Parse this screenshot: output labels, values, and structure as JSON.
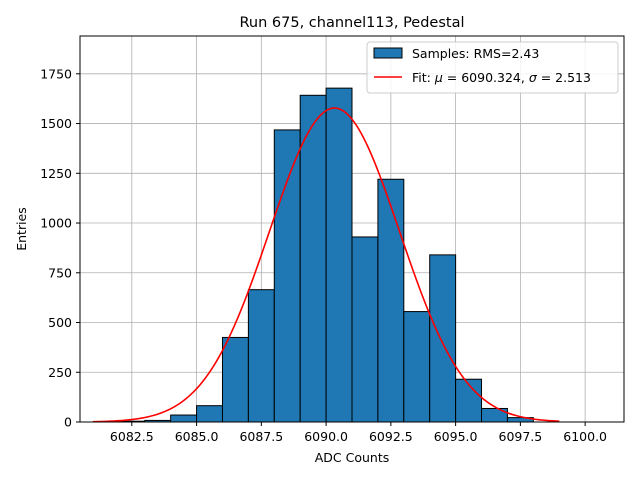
{
  "chart_data": {
    "type": "bar",
    "title": "Run 675, channel113, Pedestal",
    "xlabel": "ADC Counts",
    "ylabel": "Entries",
    "xlim": [
      6080.5,
      6101.5
    ],
    "ylim": [
      0,
      1940
    ],
    "grid": true,
    "legend_position": "top-right",
    "x_ticks": [
      6082.5,
      6085.0,
      6087.5,
      6090.0,
      6092.5,
      6095.0,
      6097.5,
      6100.0
    ],
    "x_tick_labels": [
      "6082.5",
      "6085.0",
      "6087.5",
      "6090.0",
      "6092.5",
      "6095.0",
      "6097.5",
      "6100.0"
    ],
    "y_ticks": [
      0,
      250,
      500,
      750,
      1000,
      1250,
      1500,
      1750
    ],
    "y_tick_labels": [
      "0",
      "250",
      "500",
      "750",
      "1000",
      "1250",
      "1500",
      "1750"
    ],
    "histogram": {
      "name": "Samples: RMS=2.43",
      "color": "#1f77b4",
      "edge_color": "#000000",
      "bin_edges": [
        6082,
        6083,
        6084,
        6085,
        6086,
        6087,
        6088,
        6089,
        6090,
        6091,
        6092,
        6093,
        6094,
        6095,
        6096,
        6097,
        6098
      ],
      "counts": [
        4,
        8,
        35,
        82,
        425,
        665,
        1468,
        1642,
        1678,
        930,
        1220,
        555,
        840,
        215,
        68,
        22
      ]
    },
    "fit": {
      "name": "Fit: μ = 6090.324, σ = 2.513",
      "name_parts": {
        "prefix": "Fit: ",
        "mu_symbol": "μ",
        "mu_eq": " = 6090.324, ",
        "sigma_symbol": "σ",
        "sigma_eq": " = 2.513"
      },
      "color": "#ff0000",
      "mu": 6090.324,
      "sigma": 2.513,
      "amplitude": 1578,
      "x_range": [
        6081,
        6099
      ]
    }
  }
}
